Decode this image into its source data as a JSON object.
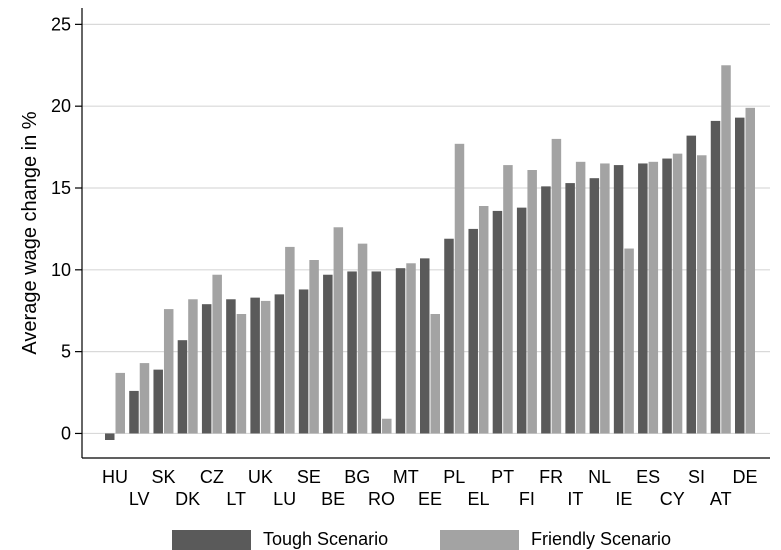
{
  "chart_data": {
    "type": "bar",
    "title": "",
    "xlabel": "",
    "ylabel": "Average wage change in %",
    "ylim": [
      -1.5,
      26
    ],
    "yticks": [
      0,
      5,
      10,
      15,
      20,
      25
    ],
    "grid": true,
    "legend_position": "bottom",
    "categories": [
      "HU",
      "LV",
      "SK",
      "DK",
      "CZ",
      "LT",
      "UK",
      "LU",
      "SE",
      "BE",
      "BG",
      "RO",
      "MT",
      "EE",
      "PL",
      "EL",
      "PT",
      "FI",
      "FR",
      "IT",
      "NL",
      "IE",
      "ES",
      "CY",
      "SI",
      "AT",
      "DE"
    ],
    "series": [
      {
        "name": "Tough Scenario",
        "color": "#5a5a5a",
        "values": [
          -0.4,
          2.6,
          3.9,
          5.7,
          7.9,
          8.2,
          8.3,
          8.5,
          8.8,
          9.7,
          9.9,
          9.9,
          10.1,
          10.7,
          11.9,
          12.5,
          13.6,
          13.8,
          15.1,
          15.3,
          15.6,
          16.4,
          16.5,
          16.8,
          18.2,
          19.1,
          19.3
        ]
      },
      {
        "name": "Friendly Scenario",
        "color": "#a3a3a3",
        "values": [
          3.7,
          4.3,
          7.6,
          8.2,
          9.7,
          7.3,
          8.1,
          11.4,
          10.6,
          12.6,
          11.6,
          0.9,
          10.4,
          7.3,
          17.7,
          13.9,
          16.4,
          16.1,
          18.0,
          16.6,
          16.5,
          11.3,
          16.6,
          17.1,
          17.0,
          22.5,
          19.9
        ]
      }
    ]
  }
}
